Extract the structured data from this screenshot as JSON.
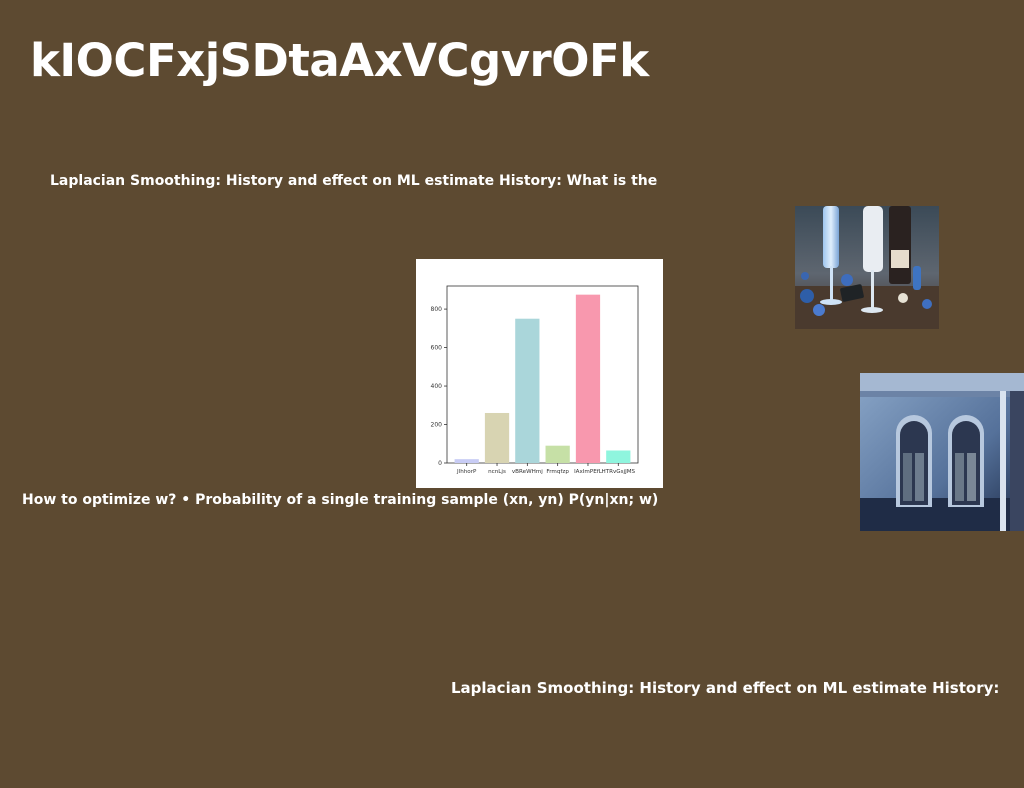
{
  "page": {
    "title": "kIOCFxjSDtaAxVCgvrOFk",
    "background_color": "#5d4a31"
  },
  "texts": {
    "line_1": "Laplacian Smoothing: History and effect on ML estimate History: What is the",
    "line_2": "How to optimize w? • Probability of a single training sample (xn, yn) P(yn|xn; w)",
    "line_3": "Laplacian Smoothing: History and effect on ML estimate History:"
  },
  "chart_data": {
    "type": "bar",
    "categories": [
      "JlhhorP",
      "ncnLjs",
      "vBReWHmj",
      "Frmqfzp",
      "lAxImPEfL",
      "HTRvGsjJMS"
    ],
    "values": [
      20,
      260,
      750,
      90,
      875,
      65
    ],
    "colors": [
      "#c8ccf5",
      "#d8d4b2",
      "#aad6da",
      "#c6e0a6",
      "#f898ae",
      "#8ff5de"
    ],
    "yticks": [
      0,
      200,
      400,
      600,
      800
    ],
    "ylim": [
      0,
      920
    ],
    "title": "",
    "xlabel": "",
    "ylabel": ""
  },
  "images": {
    "photo_1": "champagne glasses with blue decorations and a wine bottle",
    "photo_2": "blue building facade with arched windows"
  }
}
